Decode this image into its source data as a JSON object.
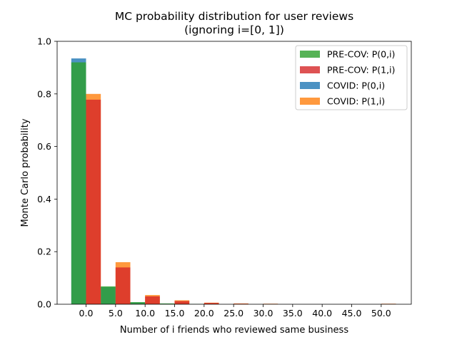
{
  "chart_data": {
    "type": "bar",
    "title": [
      "MC probability distribution for user reviews",
      "(ignoring i=[0, 1])"
    ],
    "xlabel": "Number of i friends who reviewed same business",
    "ylabel": "Monte Carlo probability",
    "ylim": [
      0,
      1.0
    ],
    "yticks": [
      "0.0",
      "0.2",
      "0.4",
      "0.6",
      "0.8",
      "1.0"
    ],
    "xticks": [
      0,
      5,
      10,
      15,
      20,
      25,
      30,
      35,
      40,
      45,
      50
    ],
    "xtick_labels": [
      "0.0",
      "5.0",
      "10.0",
      "15.0",
      "20.0",
      "25.0",
      "30.0",
      "35.0",
      "40.0",
      "45.0",
      "50.0"
    ],
    "bin_edges": [
      -2.5,
      0,
      2.5,
      5,
      7.5,
      10,
      12.5,
      15,
      17.5,
      20,
      22.5,
      25,
      27.5,
      30,
      32.5,
      35,
      37.5,
      40,
      42.5,
      45,
      47.5,
      50,
      52.5
    ],
    "legend_position": "upper-right",
    "series": [
      {
        "name": "PRE-COV: P(0,i)",
        "color": "#2ca02c",
        "offset": 0,
        "values": [
          0.92,
          0,
          0.068,
          0,
          0.008,
          0,
          0.003,
          0,
          0.001,
          0,
          0,
          0,
          0,
          0,
          0,
          0,
          0,
          0,
          0,
          0,
          0,
          0
        ]
      },
      {
        "name": "PRE-COV: P(1,i)",
        "color": "#d62728",
        "offset": 1,
        "values": [
          0,
          0.778,
          0,
          0.14,
          0,
          0.03,
          0,
          0.012,
          0,
          0.005,
          0,
          0.002,
          0,
          0.001,
          0,
          0,
          0,
          0,
          0,
          0,
          0,
          0.001
        ]
      },
      {
        "name": "COVID: P(0,i)",
        "color": "#1f77b4",
        "offset": 0,
        "values": [
          0.935,
          0,
          0.065,
          0,
          0.007,
          0,
          0.002,
          0,
          0.001,
          0,
          0,
          0,
          0,
          0,
          0,
          0,
          0,
          0,
          0,
          0,
          0,
          0
        ]
      },
      {
        "name": "COVID: P(1,i)",
        "color": "#ff7f0e",
        "offset": 1,
        "values": [
          0,
          0.8,
          0,
          0.16,
          0,
          0.035,
          0,
          0.015,
          0,
          0.006,
          0,
          0.003,
          0,
          0.002,
          0,
          0,
          0,
          0,
          0,
          0,
          0,
          0.002
        ]
      }
    ],
    "draw_order": [
      2,
      3,
      0,
      1
    ],
    "alpha": 0.8,
    "grid": false
  }
}
